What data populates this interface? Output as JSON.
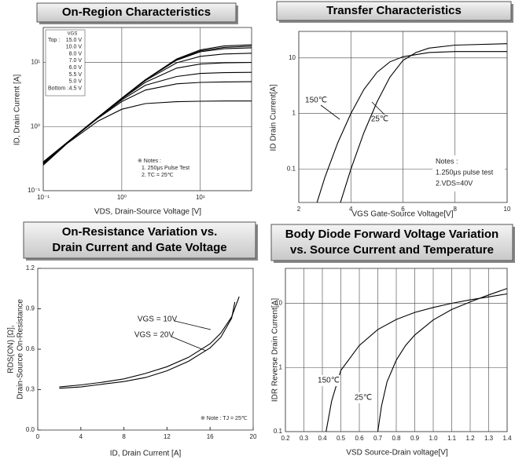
{
  "chart_data": [
    {
      "type": "line",
      "title": [
        "On-Region Characteristics"
      ],
      "x_label": "VDS, Drain-Source Voltage [V]",
      "y_label": [
        "ID, Drain Current [A]"
      ],
      "xlog": true,
      "ylog": true,
      "grid": true,
      "xlim": [
        0.1,
        45
      ],
      "ylim": [
        0.1,
        35
      ],
      "xticks": [
        {
          "value": 0.1,
          "label": "10⁻¹"
        },
        {
          "value": 1,
          "label": "10⁰"
        },
        {
          "value": 10,
          "label": "10¹"
        }
      ],
      "yticks": [
        {
          "value": 0.1,
          "label": "10⁻¹"
        },
        {
          "value": 1,
          "label": "10⁰"
        },
        {
          "value": 10,
          "label": "10¹"
        }
      ],
      "legend_title": "VGS",
      "legend_top": "Top :",
      "legend_bottom": "Bottom :",
      "notes": [
        "※ Notes :",
        "1. 250μs Pulse Test",
        "2. TC = 25℃"
      ],
      "series": [
        {
          "name": "15.0 V",
          "color": "#000000",
          "x": [
            0.1,
            0.2,
            0.5,
            1,
            2,
            5,
            10,
            20,
            45
          ],
          "values": [
            0.28,
            0.56,
            1.4,
            2.77,
            5.37,
            11.3,
            15.7,
            18.0,
            18.8
          ]
        },
        {
          "name": "10.0 V",
          "color": "#000000",
          "x": [
            0.1,
            0.2,
            0.5,
            1,
            2,
            5,
            10,
            20,
            45
          ],
          "values": [
            0.28,
            0.56,
            1.4,
            2.77,
            5.35,
            11.0,
            15.1,
            17.1,
            17.9
          ]
        },
        {
          "name": "8.0 V",
          "color": "#000000",
          "x": [
            0.1,
            0.2,
            0.5,
            1,
            2,
            5,
            10,
            20,
            45
          ],
          "values": [
            0.28,
            0.56,
            1.4,
            2.76,
            5.31,
            10.8,
            14.6,
            16.3,
            16.9
          ]
        },
        {
          "name": "7.0 V",
          "color": "#000000",
          "x": [
            0.1,
            0.2,
            0.5,
            1,
            2,
            5,
            10,
            20,
            45
          ],
          "values": [
            0.28,
            0.56,
            1.39,
            2.74,
            5.2,
            9.85,
            12.4,
            13.5,
            13.9
          ]
        },
        {
          "name": "6.0 V",
          "color": "#000000",
          "x": [
            0.1,
            0.2,
            0.5,
            1,
            2,
            5,
            10,
            20,
            45
          ],
          "values": [
            0.27,
            0.55,
            1.39,
            2.7,
            4.89,
            8.14,
            9.42,
            9.84,
            9.97
          ]
        },
        {
          "name": "5.5 V",
          "color": "#000000",
          "x": [
            0.1,
            0.2,
            0.5,
            1,
            2,
            5,
            10,
            20,
            45
          ],
          "values": [
            0.27,
            0.55,
            1.37,
            2.6,
            4.4,
            6.02,
            6.71,
            6.92,
            6.99
          ]
        },
        {
          "name": "5.0 V",
          "color": "#000000",
          "x": [
            0.1,
            0.2,
            0.5,
            1,
            2,
            5,
            10,
            20,
            45
          ],
          "values": [
            0.26,
            0.55,
            1.35,
            2.45,
            3.7,
            4.63,
            4.87,
            4.96,
            5.0
          ]
        },
        {
          "name": "4.5 V",
          "color": "#000000",
          "x": [
            0.1,
            0.2,
            0.5,
            1,
            2,
            5,
            10,
            20,
            45
          ],
          "values": [
            0.25,
            0.54,
            1.22,
            1.86,
            2.28,
            2.44,
            2.48,
            2.5,
            2.5
          ]
        }
      ]
    },
    {
      "type": "line",
      "title": [
        "Transfer Characteristics"
      ],
      "x_label": "VGS Gate-Source Voltage[V]",
      "y_label": [
        "ID Drain Current[A]"
      ],
      "ylog": true,
      "grid": true,
      "xlim": [
        2,
        10
      ],
      "ylim": [
        0.025,
        30
      ],
      "xticks": [
        2,
        4,
        6,
        8,
        10
      ],
      "yticks": [
        0.1,
        1,
        10
      ],
      "notes": [
        "Notes :",
        "1.250μs pulse test",
        "2.VDS=40V"
      ],
      "series": [
        {
          "name": "150℃",
          "color": "#000000",
          "x": [
            2.7,
            3.0,
            3.5,
            4.0,
            4.5,
            5.0,
            5.5,
            6.0,
            7.0,
            8.0,
            10.0
          ],
          "values": [
            0.025,
            0.07,
            0.3,
            1.0,
            2.7,
            5.5,
            8.5,
            10.5,
            12.5,
            13,
            13
          ]
        },
        {
          "name": "25℃",
          "color": "#000000",
          "x": [
            3.6,
            4.0,
            4.5,
            5.0,
            5.5,
            6.0,
            6.5,
            7.0,
            8.0,
            10.0
          ],
          "values": [
            0.025,
            0.1,
            0.45,
            1.6,
            4.5,
            9,
            12.5,
            15,
            17,
            18
          ]
        }
      ]
    },
    {
      "type": "line",
      "title": [
        "On-Resistance Variation vs.",
        "Drain Current and Gate Voltage"
      ],
      "x_label": "ID, Drain Current [A]",
      "y_label": [
        "RDS(ON) [Ω],",
        "Drain-Source On-Resistance"
      ],
      "grid": false,
      "xlim": [
        0,
        20
      ],
      "ylim": [
        0,
        1.2
      ],
      "xticks": [
        0,
        4,
        8,
        12,
        16,
        20
      ],
      "yticks": [
        {
          "value": 0,
          "label": "0.0"
        },
        0.3,
        0.6,
        0.9,
        1.2
      ],
      "notes": [
        "※ Note : TJ = 25℃"
      ],
      "series": [
        {
          "name": "VGS = 10V",
          "color": "#000000",
          "x": [
            2,
            4,
            6,
            8,
            10,
            12,
            14,
            16,
            17,
            18,
            18.7
          ],
          "values": [
            0.32,
            0.335,
            0.355,
            0.38,
            0.42,
            0.47,
            0.54,
            0.64,
            0.72,
            0.84,
            0.99
          ]
        },
        {
          "name": "VGS = 20V",
          "color": "#000000",
          "x": [
            2,
            4,
            6,
            8,
            10,
            12,
            14,
            16,
            17,
            18,
            18.3
          ],
          "values": [
            0.31,
            0.32,
            0.34,
            0.36,
            0.39,
            0.44,
            0.51,
            0.61,
            0.69,
            0.83,
            0.95
          ]
        }
      ]
    },
    {
      "type": "line",
      "title": [
        "Body Diode Forward Voltage Variation",
        "vs. Source Current and Temperature"
      ],
      "x_label": "VSD Source-Drain voltage[V]",
      "y_label": [
        "IDR Reverse Drain Current[A]"
      ],
      "ylog": true,
      "grid": true,
      "xlim": [
        0.2,
        1.4
      ],
      "ylim": [
        0.1,
        35
      ],
      "xticks": [
        0.2,
        0.3,
        0.4,
        0.5,
        0.6,
        0.7,
        0.8,
        0.9,
        {
          "value": 1,
          "label": "1.0"
        },
        1.1,
        1.2,
        1.3,
        1.4
      ],
      "yticks": [
        0.1,
        1,
        10
      ],
      "series": [
        {
          "name": "150℃",
          "color": "#000000",
          "x": [
            0.42,
            0.45,
            0.5,
            0.6,
            0.7,
            0.8,
            0.9,
            1.0,
            1.1,
            1.2,
            1.3,
            1.4
          ],
          "values": [
            0.1,
            0.3,
            0.9,
            2.2,
            3.9,
            5.6,
            7.2,
            8.6,
            10,
            11.3,
            12.6,
            14
          ]
        },
        {
          "name": "25℃",
          "color": "#000000",
          "x": [
            0.7,
            0.72,
            0.75,
            0.8,
            0.85,
            0.9,
            1.0,
            1.1,
            1.2,
            1.3,
            1.4
          ],
          "values": [
            0.1,
            0.25,
            0.6,
            1.3,
            2.2,
            3.2,
            5.5,
            8,
            10.5,
            13.5,
            17
          ]
        }
      ]
    }
  ]
}
